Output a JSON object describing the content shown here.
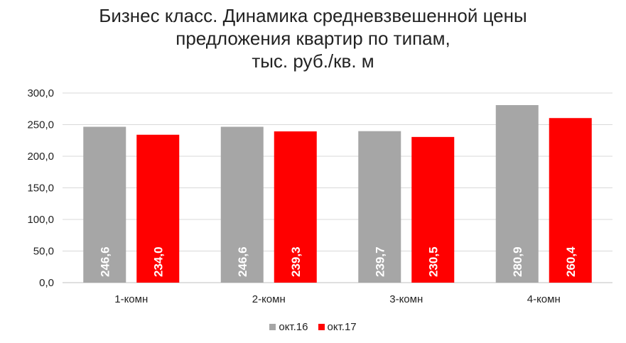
{
  "chart_data": {
    "type": "bar",
    "title_lines": [
      "Бизнес класс. Динамика средневзвешенной цены",
      "предложения квартир по типам,",
      "тыс. руб./кв. м"
    ],
    "categories": [
      "1-комн",
      "2-комн",
      "3-комн",
      "4-комн"
    ],
    "series": [
      {
        "name": "окт.16",
        "values": [
          246.6,
          246.6,
          239.7,
          280.9
        ],
        "labels": [
          "246,6",
          "246,6",
          "239,7",
          "280,9"
        ],
        "color": "#a6a6a6"
      },
      {
        "name": "окт.17",
        "values": [
          234.0,
          239.3,
          230.5,
          260.4
        ],
        "labels": [
          "234,0",
          "239,3",
          "230,5",
          "260,4"
        ],
        "color": "#ff0000"
      }
    ],
    "y_ticks": [
      "0,0",
      "50,0",
      "100,0",
      "150,0",
      "200,0",
      "250,0",
      "300,0"
    ],
    "ylim": [
      0,
      300
    ],
    "grid": true,
    "legend_position": "bottom",
    "data_label_color": "#ffffff"
  }
}
